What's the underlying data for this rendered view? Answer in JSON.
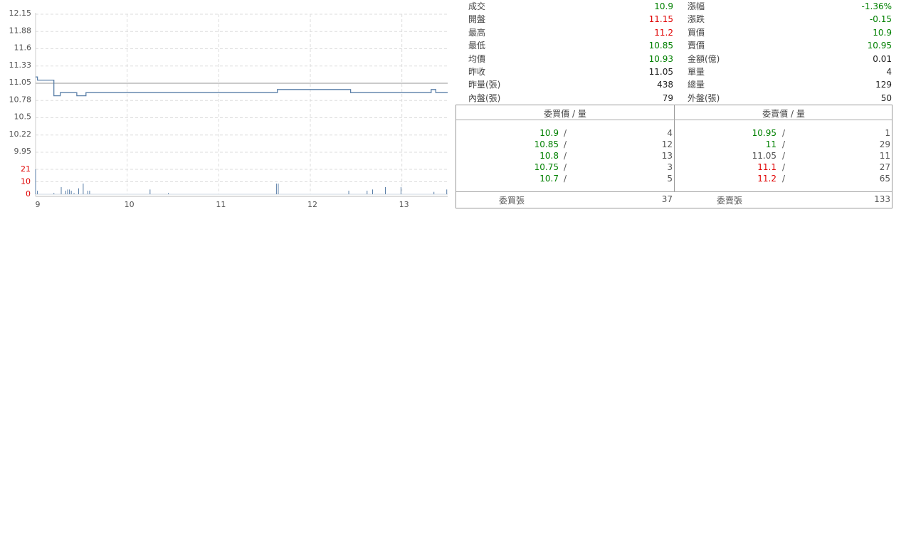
{
  "colors": {
    "up": "#e00000",
    "down": "#008000",
    "flat": "#555555",
    "line": "#5a7fa8",
    "grid": "#dddddd"
  },
  "chart_data": {
    "type": "line",
    "y_ticks": [
      "12.15",
      "11.88",
      "11.6",
      "11.33",
      "11.05",
      "10.78",
      "10.5",
      "10.22",
      "9.95"
    ],
    "ylim": [
      9.95,
      12.15
    ],
    "reference_price": 11.05,
    "volume_ticks": [
      "21",
      "10",
      "0"
    ],
    "volume_max": 21,
    "x_ticks": [
      "9",
      "10",
      "11",
      "12",
      "13"
    ],
    "xlim": [
      9.0,
      13.5
    ],
    "price_series": {
      "x": [
        9.0,
        9.02,
        9.02,
        9.2,
        9.2,
        9.27,
        9.27,
        9.45,
        9.45,
        9.55,
        9.55,
        11.64,
        11.64,
        12.44,
        12.44,
        13.32,
        13.32,
        13.37,
        13.37,
        13.5
      ],
      "y": [
        11.15,
        11.15,
        11.1,
        11.1,
        10.85,
        10.85,
        10.9,
        10.9,
        10.85,
        10.85,
        10.9,
        10.9,
        10.95,
        10.95,
        10.9,
        10.9,
        10.95,
        10.95,
        10.9,
        10.9
      ]
    },
    "volume_series": {
      "x": [
        9.0,
        9.02,
        9.2,
        9.28,
        9.33,
        9.35,
        9.37,
        9.39,
        9.42,
        9.47,
        9.52,
        9.57,
        9.59,
        10.25,
        10.45,
        11.63,
        11.65,
        12.42,
        12.62,
        12.68,
        12.82,
        12.99,
        13.35,
        13.49
      ],
      "y": [
        21,
        3,
        1,
        6,
        3,
        4,
        4,
        3,
        1,
        5,
        9,
        3,
        3,
        4,
        1,
        9,
        9,
        3,
        3,
        4,
        6,
        6,
        2,
        4
      ]
    }
  },
  "quote": {
    "rows": [
      {
        "l1": "成交",
        "v1": "10.9",
        "c1": "green",
        "l2": "漲幅",
        "v2": "-1.36%",
        "c2": "green"
      },
      {
        "l1": "開盤",
        "v1": "11.15",
        "c1": "red",
        "l2": "漲跌",
        "v2": "-0.15",
        "c2": "green"
      },
      {
        "l1": "最高",
        "v1": "11.2",
        "c1": "red",
        "l2": "買價",
        "v2": "10.9",
        "c2": "green"
      },
      {
        "l1": "最低",
        "v1": "10.85",
        "c1": "green",
        "l2": "賣價",
        "v2": "10.95",
        "c2": "green"
      },
      {
        "l1": "均價",
        "v1": "10.93",
        "c1": "green",
        "l2": "金額(億)",
        "v2": "0.01",
        "c2": "dark"
      },
      {
        "l1": "昨收",
        "v1": "11.05",
        "c1": "dark",
        "l2": "單量",
        "v2": "4",
        "c2": "dark"
      },
      {
        "l1": "昨量(張)",
        "v1": "438",
        "c1": "dark",
        "l2": "總量",
        "v2": "129",
        "c2": "dark"
      },
      {
        "l1": "內盤(張)",
        "v1": "79",
        "c1": "dark",
        "l2": "外盤(張)",
        "v2": "50",
        "c2": "dark"
      }
    ]
  },
  "order_book": {
    "bid_header": "委買價 / 量",
    "ask_header": "委賣價 / 量",
    "slash": "/",
    "bids": [
      {
        "price": "10.9",
        "qty": "4",
        "color": "green"
      },
      {
        "price": "10.85",
        "qty": "12",
        "color": "green"
      },
      {
        "price": "10.8",
        "qty": "13",
        "color": "green"
      },
      {
        "price": "10.75",
        "qty": "3",
        "color": "green"
      },
      {
        "price": "10.7",
        "qty": "5",
        "color": "green"
      }
    ],
    "asks": [
      {
        "price": "10.95",
        "qty": "1",
        "color": "green"
      },
      {
        "price": "11",
        "qty": "29",
        "color": "green"
      },
      {
        "price": "11.05",
        "qty": "11",
        "color": "gray"
      },
      {
        "price": "11.1",
        "qty": "27",
        "color": "red"
      },
      {
        "price": "11.2",
        "qty": "65",
        "color": "red"
      }
    ],
    "bid_total_label": "委買張",
    "bid_total": "37",
    "ask_total_label": "委賣張",
    "ask_total": "133"
  }
}
